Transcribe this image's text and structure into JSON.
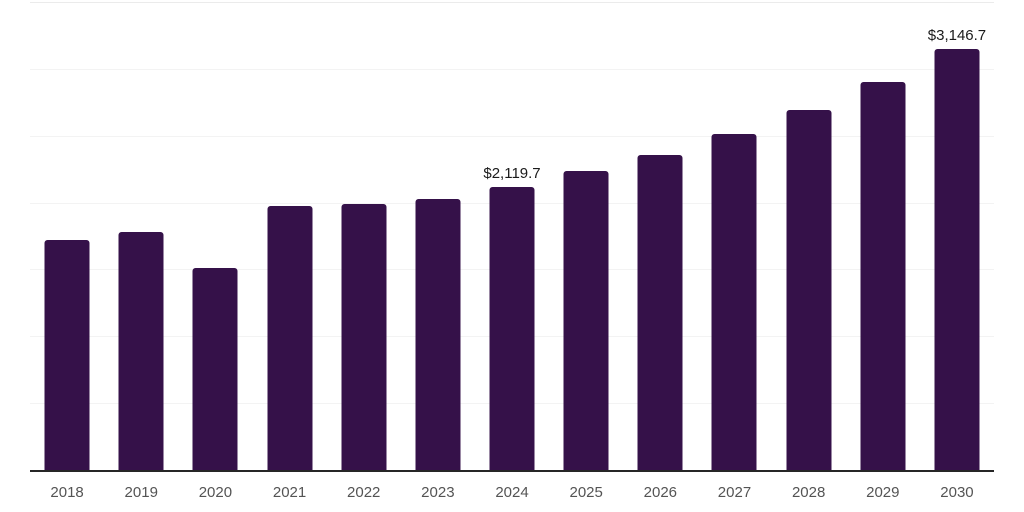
{
  "chart_data": {
    "type": "bar",
    "title": "",
    "xlabel": "",
    "ylabel": "",
    "categories": [
      "2018",
      "2019",
      "2020",
      "2021",
      "2022",
      "2023",
      "2024",
      "2025",
      "2026",
      "2027",
      "2028",
      "2029",
      "2030"
    ],
    "values": [
      1724,
      1778,
      1510,
      1978,
      1990,
      2029,
      2119.7,
      2234,
      2356,
      2512,
      2690,
      2901,
      3146.7
    ],
    "data_labels": [
      "",
      "",
      "",
      "",
      "",
      "",
      "$2,119.7",
      "",
      "",
      "",
      "",
      "",
      "$3,146.7"
    ],
    "ylim": [
      0,
      3500
    ],
    "grid_step": 500,
    "grid": "horizontal light gridlines, no y-axis tick labels",
    "legend": "none",
    "currency_unit": "USD"
  },
  "colors": {
    "bar": "#351149",
    "grid": "#f3f3f3",
    "grid_top": "#ebebeb",
    "axis": "#262626",
    "x_label": "#545454",
    "value_label": "#1a1a1a",
    "background": "#ffffff"
  }
}
